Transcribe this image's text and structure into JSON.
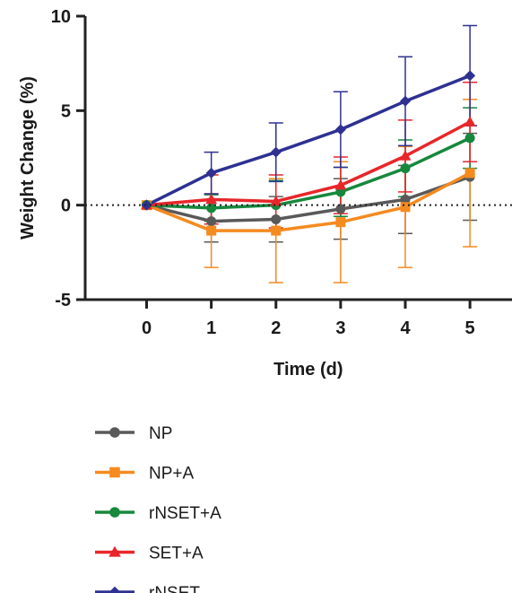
{
  "chart_data": {
    "type": "line",
    "title": "",
    "xlabel": "Time (d)",
    "ylabel": "Weight Change (%)",
    "x": [
      0,
      1,
      2,
      3,
      4,
      5
    ],
    "x_ticks": [
      "0",
      "1",
      "2",
      "3",
      "4",
      "5"
    ],
    "y_ticks": [
      "10",
      "5",
      "0",
      "-5"
    ],
    "xlim": [
      -0.95,
      5.65
    ],
    "ylim": [
      -5,
      10
    ],
    "reference_line": {
      "y": 0,
      "style": "dotted"
    },
    "grid": false,
    "legend_position": "bottom",
    "series": [
      {
        "name": "NP",
        "color": "#595959",
        "marker": "circle",
        "values": [
          0,
          -0.85,
          -0.75,
          -0.2,
          0.3,
          1.5
        ],
        "errors": [
          0,
          1.1,
          1.2,
          1.6,
          1.8,
          2.3
        ]
      },
      {
        "name": "NP+A",
        "color": "#f58a1f",
        "marker": "square",
        "values": [
          0,
          -1.35,
          -1.35,
          -0.9,
          -0.1,
          1.7
        ],
        "errors": [
          0,
          1.95,
          2.75,
          3.2,
          3.2,
          3.9
        ]
      },
      {
        "name": "rNSET+A",
        "color": "#16883c",
        "marker": "circle",
        "values": [
          0,
          -0.15,
          0.0,
          0.7,
          1.95,
          3.55
        ],
        "errors": [
          0,
          0.7,
          1.3,
          1.3,
          1.5,
          1.6
        ]
      },
      {
        "name": "SET+A",
        "color": "#e8262a",
        "marker": "triangle",
        "values": [
          0,
          0.3,
          0.2,
          1.05,
          2.6,
          4.4
        ],
        "errors": [
          0,
          1.3,
          1.4,
          1.5,
          1.9,
          2.1
        ]
      },
      {
        "name": "rNSET",
        "color": "#2e3192",
        "marker": "diamond",
        "values": [
          0,
          1.7,
          2.8,
          4.0,
          5.5,
          6.85
        ],
        "errors": [
          0,
          1.1,
          1.55,
          2.0,
          2.35,
          2.65
        ]
      }
    ]
  }
}
